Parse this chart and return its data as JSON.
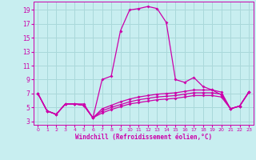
{
  "xlabel": "Windchill (Refroidissement éolien,°C)",
  "xlim": [
    -0.5,
    23.5
  ],
  "ylim": [
    2.5,
    20.2
  ],
  "yticks": [
    3,
    5,
    7,
    9,
    11,
    13,
    15,
    17,
    19
  ],
  "xticks": [
    0,
    1,
    2,
    3,
    4,
    5,
    6,
    7,
    8,
    9,
    10,
    11,
    12,
    13,
    14,
    15,
    16,
    17,
    18,
    19,
    20,
    21,
    22,
    23
  ],
  "bg_color": "#c8eef0",
  "grid_color": "#aad8da",
  "line_color": "#cc00aa",
  "line1_y": [
    7.0,
    4.5,
    4.0,
    5.5,
    5.5,
    5.5,
    3.5,
    9.0,
    9.5,
    16.0,
    19.0,
    19.2,
    19.5,
    19.2,
    17.2,
    9.0,
    8.6,
    9.3,
    8.0,
    7.5,
    6.8,
    4.8,
    5.2,
    7.2
  ],
  "line2_y": [
    7.0,
    4.5,
    4.0,
    5.5,
    5.5,
    5.3,
    3.5,
    4.8,
    5.3,
    5.8,
    6.2,
    6.5,
    6.7,
    6.9,
    7.0,
    7.1,
    7.3,
    7.5,
    7.5,
    7.5,
    7.2,
    4.8,
    5.2,
    7.2
  ],
  "line3_y": [
    7.0,
    4.5,
    4.0,
    5.5,
    5.5,
    5.3,
    3.5,
    4.5,
    5.0,
    5.4,
    5.8,
    6.1,
    6.3,
    6.5,
    6.6,
    6.7,
    6.9,
    7.1,
    7.1,
    7.1,
    6.9,
    4.8,
    5.2,
    7.2
  ],
  "line4_y": [
    7.0,
    4.5,
    4.0,
    5.5,
    5.5,
    5.3,
    3.5,
    4.2,
    4.7,
    5.1,
    5.5,
    5.7,
    5.9,
    6.1,
    6.2,
    6.3,
    6.5,
    6.7,
    6.7,
    6.7,
    6.5,
    4.8,
    5.2,
    7.2
  ]
}
